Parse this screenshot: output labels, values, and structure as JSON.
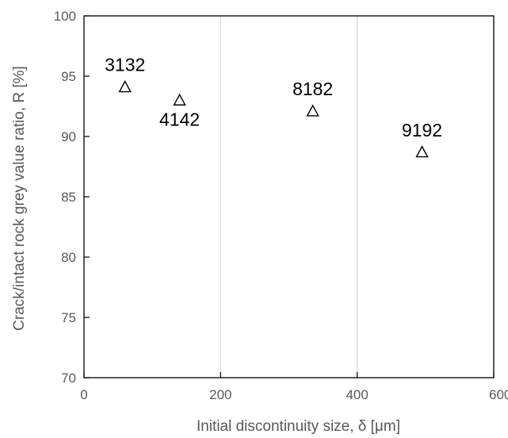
{
  "chart_data": {
    "type": "scatter",
    "title": "",
    "xlabel": "Initial discontinuity size, δ [μm]",
    "ylabel": "Crack/intact rock grey value ratio, R [%]",
    "xlim": [
      0,
      600
    ],
    "ylim": [
      70,
      100
    ],
    "xticks": [
      0,
      200,
      400,
      600
    ],
    "yticks": [
      70,
      75,
      80,
      85,
      90,
      95,
      100
    ],
    "xtick_labels": [
      "0",
      "200",
      "400",
      "600"
    ],
    "ytick_labels": [
      "70",
      "75",
      "80",
      "85",
      "90",
      "95",
      "100"
    ],
    "grid": "vertical",
    "marker": "open-triangle",
    "marker_color": "#000000",
    "grid_color": "#d9d9d9",
    "axis_color": "#000000",
    "series": [
      {
        "points": [
          {
            "x": 60,
            "y": 94.1,
            "label": "3132",
            "label_pos": "above"
          },
          {
            "x": 140,
            "y": 93.0,
            "label": "4142",
            "label_pos": "below"
          },
          {
            "x": 335,
            "y": 92.1,
            "label": "8182",
            "label_pos": "above"
          },
          {
            "x": 495,
            "y": 88.7,
            "label": "9192",
            "label_pos": "above"
          }
        ]
      }
    ]
  }
}
